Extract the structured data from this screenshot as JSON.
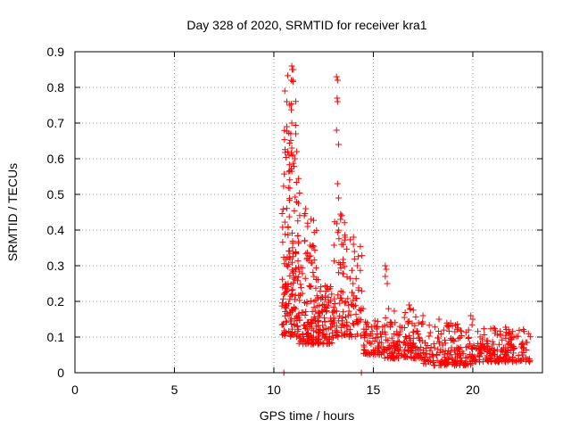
{
  "chart_data": {
    "type": "scatter",
    "title": "Day 328 of 2020, SRMTID for receiver kra1",
    "xlabel": "GPS time / hours",
    "ylabel": "SRMTID / TECUs",
    "xlim": [
      0,
      23.5
    ],
    "ylim": [
      0,
      0.9
    ],
    "x_ticks": [
      0,
      5,
      10,
      15,
      20
    ],
    "x_tick_labels": [
      "0",
      "5",
      "10",
      "15",
      "20"
    ],
    "y_ticks": [
      0,
      0.1,
      0.2,
      0.3,
      0.4,
      0.5,
      0.6,
      0.7,
      0.8,
      0.9
    ],
    "y_tick_labels": [
      "0",
      "0.1",
      "0.2",
      "0.3",
      "0.4",
      "0.5",
      "0.6",
      "0.7",
      "0.8",
      "0.9"
    ],
    "grid": true,
    "marker": "+",
    "series_color": "#ff0000",
    "clusters": [
      {
        "x_range": [
          10.4,
          11.3
        ],
        "y_range": [
          0.1,
          0.55
        ],
        "count": 150
      },
      {
        "x_range": [
          10.5,
          11.1
        ],
        "y_range": [
          0.55,
          0.86
        ],
        "count": 28
      },
      {
        "x_range": [
          11.2,
          12.3
        ],
        "y_range": [
          0.08,
          0.3
        ],
        "count": 110
      },
      {
        "x_range": [
          11.5,
          12.2
        ],
        "y_range": [
          0.3,
          0.48
        ],
        "count": 24
      },
      {
        "x_range": [
          12.2,
          13.0
        ],
        "y_range": [
          0.08,
          0.25
        ],
        "count": 80
      },
      {
        "x_range": [
          13.0,
          13.6
        ],
        "y_range": [
          0.1,
          0.45
        ],
        "count": 60
      },
      {
        "x_range": [
          13.6,
          14.5
        ],
        "y_range": [
          0.1,
          0.38
        ],
        "count": 60
      },
      {
        "x_range": [
          14.5,
          15.5
        ],
        "y_range": [
          0.05,
          0.15
        ],
        "count": 70
      },
      {
        "x_range": [
          15.5,
          17.5
        ],
        "y_range": [
          0.04,
          0.18
        ],
        "count": 150
      },
      {
        "x_range": [
          17.5,
          20.0
        ],
        "y_range": [
          0.02,
          0.14
        ],
        "count": 170
      },
      {
        "x_range": [
          20.0,
          22.9
        ],
        "y_range": [
          0.03,
          0.13
        ],
        "count": 200
      }
    ],
    "points": [
      [
        10.55,
        0.79
      ],
      [
        10.65,
        0.76
      ],
      [
        10.8,
        0.75
      ],
      [
        10.9,
        0.86
      ],
      [
        10.92,
        0.85
      ],
      [
        10.88,
        0.82
      ],
      [
        10.95,
        0.82
      ],
      [
        10.9,
        0.7
      ],
      [
        10.65,
        0.69
      ],
      [
        10.85,
        0.67
      ],
      [
        10.9,
        0.63
      ],
      [
        11.1,
        0.67
      ],
      [
        11.15,
        0.62
      ],
      [
        11.05,
        0.6
      ],
      [
        10.7,
        0.62
      ],
      [
        13.15,
        0.83
      ],
      [
        13.2,
        0.82
      ],
      [
        13.18,
        0.77
      ],
      [
        13.2,
        0.76
      ],
      [
        13.15,
        0.68
      ],
      [
        13.25,
        0.64
      ],
      [
        13.2,
        0.53
      ],
      [
        13.25,
        0.49
      ],
      [
        13.4,
        0.44
      ],
      [
        13.35,
        0.43
      ],
      [
        15.6,
        0.3
      ],
      [
        15.65,
        0.29
      ],
      [
        15.6,
        0.27
      ],
      [
        15.7,
        0.25
      ],
      [
        16.8,
        0.19
      ],
      [
        16.85,
        0.18
      ],
      [
        19.9,
        0.16
      ],
      [
        20.0,
        0.15
      ],
      [
        18.3,
        0.15
      ],
      [
        14.0,
        0.38
      ],
      [
        14.0,
        0.36
      ],
      [
        14.05,
        0.34
      ],
      [
        14.2,
        0.3
      ],
      [
        11.6,
        0.46
      ],
      [
        11.7,
        0.41
      ],
      [
        10.5,
        0.0
      ],
      [
        14.4,
        0.0
      ]
    ]
  }
}
